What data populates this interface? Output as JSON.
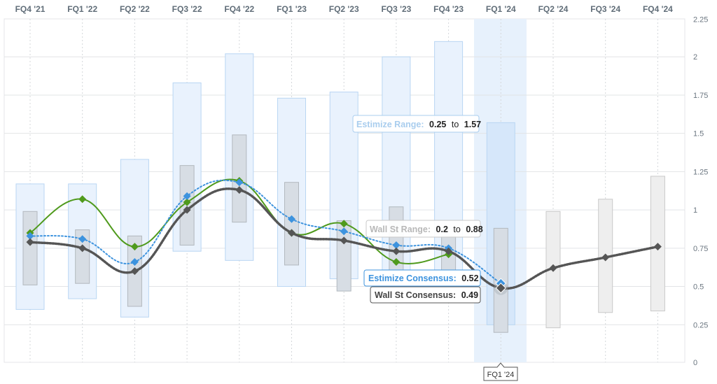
{
  "chart_data": {
    "type": "line",
    "categories": [
      "FQ4 '21",
      "FQ1 '22",
      "FQ2 '22",
      "FQ3 '22",
      "FQ4 '22",
      "FQ1 '23",
      "FQ2 '23",
      "FQ3 '23",
      "FQ4 '23",
      "FQ1 '24",
      "FQ2 '24",
      "FQ3 '24",
      "FQ4 '24"
    ],
    "ylim": [
      0,
      2.25
    ],
    "yticks": [
      "0",
      "0.25",
      "0.5",
      "0.75",
      "1",
      "1.25",
      "1.5",
      "1.75",
      "2",
      "2.25"
    ],
    "grid": true,
    "estimize_range": [
      [
        0.35,
        1.17
      ],
      [
        0.42,
        1.17
      ],
      [
        0.3,
        1.33
      ],
      [
        0.73,
        1.83
      ],
      [
        0.67,
        2.02
      ],
      [
        0.5,
        1.73
      ],
      [
        0.55,
        1.77
      ],
      [
        0.55,
        2.0
      ],
      [
        0.53,
        2.1
      ],
      [
        0.25,
        1.57
      ],
      null,
      null,
      null
    ],
    "wallst_range": [
      [
        0.51,
        0.99
      ],
      [
        0.52,
        0.87
      ],
      [
        0.37,
        0.83
      ],
      [
        0.77,
        1.29
      ],
      [
        0.92,
        1.49
      ],
      [
        0.64,
        1.18
      ],
      [
        0.47,
        0.93
      ],
      [
        0.55,
        1.02
      ],
      [
        0.52,
        0.83
      ],
      [
        0.2,
        0.88
      ],
      [
        0.23,
        0.99
      ],
      [
        0.33,
        1.07
      ],
      [
        0.34,
        1.22
      ]
    ],
    "series": [
      {
        "key": "actual",
        "color": "#4f9a1c",
        "values": [
          0.85,
          1.07,
          0.76,
          1.05,
          1.19,
          0.85,
          0.91,
          0.66,
          0.71,
          null,
          null,
          null,
          null
        ]
      },
      {
        "key": "estimize",
        "color": "#3d93de",
        "values": [
          0.83,
          0.81,
          0.66,
          1.09,
          1.18,
          0.94,
          0.86,
          0.77,
          0.75,
          0.52,
          null,
          null,
          null
        ]
      },
      {
        "key": "wallst",
        "color": "#555555",
        "values": [
          0.79,
          0.75,
          0.6,
          1.0,
          1.13,
          0.85,
          0.8,
          0.73,
          0.73,
          0.49,
          0.62,
          0.69,
          0.76
        ]
      }
    ],
    "highlight_index": 9,
    "tooltips": {
      "estimize_range": {
        "label": "Estimize Range:",
        "low": "0.25",
        "sep": "to",
        "high": "1.57"
      },
      "wallst_range": {
        "label": "Wall St Range:",
        "low": "0.2",
        "sep": "to",
        "high": "0.88"
      },
      "estimize_consensus": {
        "label": "Estimize Consensus:",
        "value": "0.52"
      },
      "wallst_consensus": {
        "label": "Wall St Consensus:",
        "value": "0.49"
      },
      "x_label": "FQ1 '24"
    }
  }
}
